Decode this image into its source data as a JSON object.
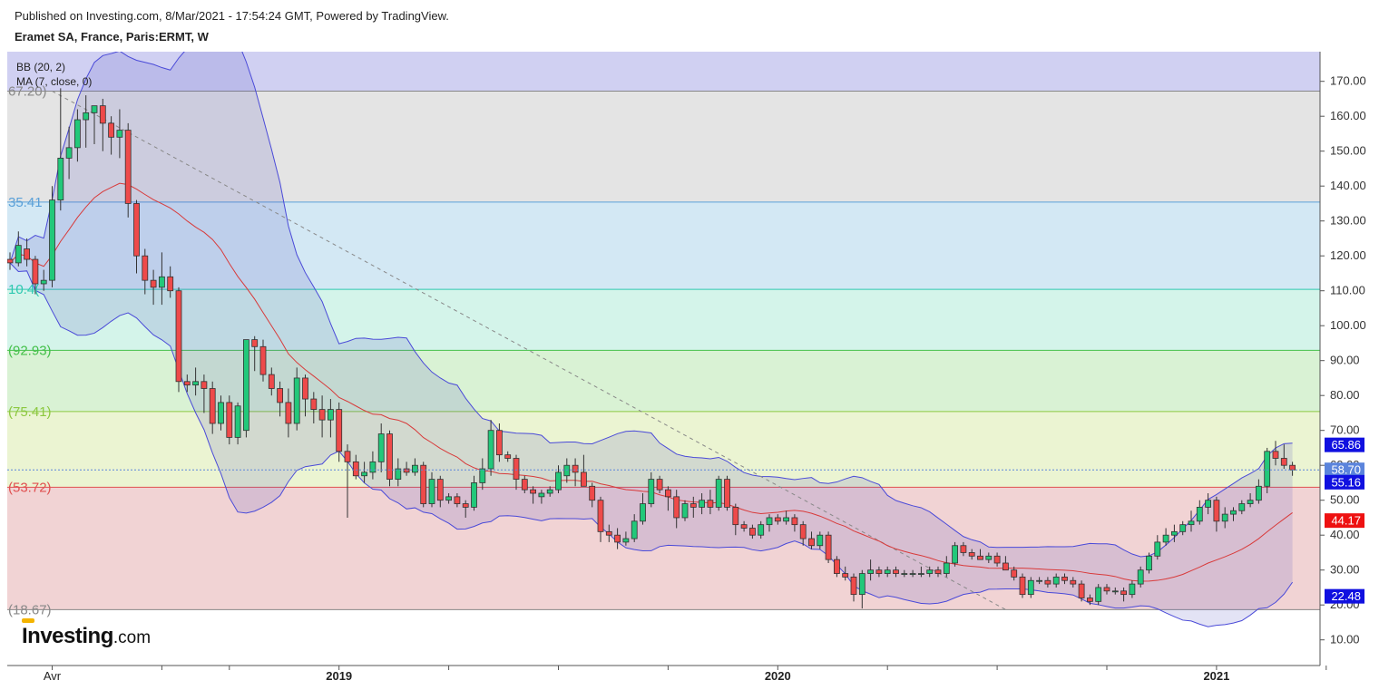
{
  "header": {
    "published": "Published on Investing.com, 8/Mar/2021 - 17:54:24 GMT, Powered by TradingView.",
    "symbol": "Eramet SA, France, Paris:ERMT, W"
  },
  "logo": {
    "main": "Investing",
    "suffix": ".com"
  },
  "indicators": [
    "BB (20, 2)",
    "MA (7, close, 0)"
  ],
  "chart_data": {
    "type": "candlestick",
    "timeframe": "W",
    "ylim": [
      0,
      180
    ],
    "y_ticks": [
      10,
      20,
      30,
      40,
      50,
      60,
      70,
      80,
      90,
      100,
      110,
      120,
      130,
      140,
      150,
      160,
      170
    ],
    "x_tick_labels": [
      {
        "label": "Avr",
        "t": 5
      },
      {
        "label": "2019",
        "t": 39
      },
      {
        "label": "2020",
        "t": 91
      },
      {
        "label": "2021",
        "t": 143
      }
    ],
    "x_minor_ticks": [
      18,
      26,
      52,
      65,
      78,
      104,
      117,
      130,
      156
    ],
    "fib_levels": [
      {
        "label": "67.20)",
        "value": 167.2,
        "color": "#888888",
        "fill": "#d0d0f2"
      },
      {
        "label": "35.41",
        "value": 135.41,
        "color": "#5aa0d8",
        "fill": "#e4e4e4"
      },
      {
        "label": "10.4(",
        "value": 110.4,
        "color": "#2ec8b0",
        "fill": "#d3e8f4"
      },
      {
        "label": "(92.93)",
        "value": 92.93,
        "color": "#44c04a",
        "fill": "#d4f4ea"
      },
      {
        "label": "(75.41)",
        "value": 75.41,
        "color": "#8cc840",
        "fill": "#d9f2d4"
      },
      {
        "label": "(53.72)",
        "value": 53.72,
        "color": "#e05050",
        "fill": "#ebf4d2"
      },
      {
        "label": "(18.67)",
        "value": 18.67,
        "color": "#888888",
        "fill": "#f1d3d4"
      }
    ],
    "price_labels": [
      {
        "value": 65.86,
        "text": "65.86",
        "bg": "#1010e0"
      },
      {
        "value": 58.7,
        "text": "58.70",
        "bg": "#5b84dc"
      },
      {
        "value": 55.16,
        "text": "55.16",
        "bg": "#1010e0"
      },
      {
        "value": 44.17,
        "text": "44.17",
        "bg": "#ee1111"
      },
      {
        "value": 22.48,
        "text": "22.48",
        "bg": "#1010e0"
      }
    ],
    "last_close": 58.7,
    "trendline": {
      "from": [
        5,
        167.2
      ],
      "to": [
        118,
        18.67
      ]
    },
    "candles": [
      [
        0,
        119,
        121,
        116,
        118
      ],
      [
        1,
        118,
        127,
        117,
        123
      ],
      [
        2,
        122,
        125,
        117,
        119
      ],
      [
        3,
        119,
        120,
        109,
        112
      ],
      [
        4,
        112,
        116,
        110,
        113
      ],
      [
        5,
        113,
        140,
        111,
        136
      ],
      [
        6,
        136,
        168,
        133,
        148
      ],
      [
        7,
        148,
        157,
        142,
        151
      ],
      [
        8,
        151,
        162,
        147,
        159
      ],
      [
        9,
        159,
        166,
        151,
        161
      ],
      [
        10,
        161,
        163,
        152,
        163
      ],
      [
        11,
        163,
        165,
        150,
        158
      ],
      [
        12,
        158,
        160,
        149,
        154
      ],
      [
        13,
        154,
        162,
        148,
        156
      ],
      [
        14,
        156,
        158,
        131,
        135
      ],
      [
        15,
        135,
        136,
        115,
        120
      ],
      [
        16,
        120,
        122,
        109,
        113
      ],
      [
        17,
        113,
        116,
        106,
        111
      ],
      [
        18,
        111,
        121,
        106,
        114
      ],
      [
        19,
        114,
        117,
        108,
        110
      ],
      [
        20,
        110,
        111,
        81,
        84
      ],
      [
        21,
        84,
        86,
        81,
        83
      ],
      [
        22,
        83,
        88,
        80,
        84
      ],
      [
        23,
        84,
        86,
        75,
        82
      ],
      [
        24,
        82,
        84,
        69,
        72
      ],
      [
        25,
        72,
        80,
        70,
        78
      ],
      [
        26,
        78,
        80,
        66,
        68
      ],
      [
        27,
        68,
        78,
        66,
        77
      ],
      [
        28,
        70,
        96,
        68,
        96
      ],
      [
        29,
        96,
        97,
        87,
        94
      ],
      [
        30,
        94,
        96,
        84,
        86
      ],
      [
        31,
        86,
        88,
        80,
        82
      ],
      [
        32,
        82,
        84,
        74,
        78
      ],
      [
        33,
        78,
        82,
        68,
        72
      ],
      [
        34,
        72,
        88,
        70,
        85
      ],
      [
        35,
        85,
        86,
        74,
        79
      ],
      [
        36,
        79,
        81,
        72,
        76
      ],
      [
        37,
        76,
        80,
        68,
        73
      ],
      [
        38,
        73,
        79,
        68,
        76
      ],
      [
        39,
        76,
        78,
        61,
        64
      ],
      [
        40,
        64,
        66,
        45,
        61
      ],
      [
        41,
        61,
        63,
        56,
        57
      ],
      [
        42,
        57,
        61,
        55,
        58
      ],
      [
        43,
        58,
        64,
        56,
        61
      ],
      [
        44,
        61,
        72,
        58,
        69
      ],
      [
        45,
        69,
        70,
        54,
        56
      ],
      [
        46,
        56,
        62,
        54,
        59
      ],
      [
        47,
        59,
        61,
        57,
        58
      ],
      [
        48,
        58,
        62,
        57,
        60
      ],
      [
        49,
        60,
        61,
        48,
        49
      ],
      [
        50,
        49,
        58,
        48,
        56
      ],
      [
        51,
        56,
        57,
        48,
        50
      ],
      [
        52,
        50,
        52,
        49,
        51
      ],
      [
        53,
        51,
        52,
        48,
        49
      ],
      [
        54,
        49,
        50,
        45,
        48
      ],
      [
        55,
        48,
        57,
        47,
        55
      ],
      [
        56,
        55,
        62,
        53,
        59
      ],
      [
        57,
        59,
        73,
        57,
        70
      ],
      [
        58,
        70,
        72,
        61,
        63
      ],
      [
        59,
        63,
        64,
        61,
        62
      ],
      [
        60,
        62,
        63,
        53,
        56
      ],
      [
        61,
        56,
        57,
        52,
        53
      ],
      [
        62,
        53,
        54,
        49,
        52
      ],
      [
        63,
        51,
        53,
        49,
        52
      ],
      [
        64,
        52,
        54,
        51,
        53
      ],
      [
        65,
        53,
        60,
        52,
        58
      ],
      [
        66,
        57,
        62,
        55,
        60
      ],
      [
        67,
        60,
        62,
        54,
        58
      ],
      [
        68,
        58,
        63,
        54,
        54
      ],
      [
        69,
        54,
        55,
        48,
        50
      ],
      [
        70,
        50,
        51,
        38,
        41
      ],
      [
        71,
        41,
        43,
        38,
        40
      ],
      [
        72,
        40,
        42,
        36,
        38
      ],
      [
        73,
        38,
        41,
        37,
        39
      ],
      [
        74,
        39,
        46,
        38,
        44
      ],
      [
        75,
        44,
        52,
        43,
        49
      ],
      [
        76,
        49,
        58,
        48,
        56
      ],
      [
        77,
        56,
        57,
        52,
        53
      ],
      [
        78,
        53,
        54,
        47,
        51
      ],
      [
        79,
        51,
        53,
        42,
        45
      ],
      [
        80,
        45,
        50,
        44,
        49
      ],
      [
        81,
        49,
        51,
        45,
        48
      ],
      [
        82,
        48,
        52,
        46,
        50
      ],
      [
        83,
        50,
        53,
        46,
        48
      ],
      [
        84,
        48,
        57,
        47,
        56
      ],
      [
        85,
        56,
        57,
        47,
        48
      ],
      [
        86,
        48,
        49,
        40,
        43
      ],
      [
        87,
        43,
        44,
        41,
        42
      ],
      [
        88,
        42,
        43,
        39,
        40
      ],
      [
        89,
        40,
        44,
        39,
        43
      ],
      [
        90,
        43,
        46,
        41,
        45
      ],
      [
        91,
        45,
        46,
        43,
        44
      ],
      [
        92,
        44,
        47,
        43,
        45
      ],
      [
        93,
        45,
        46,
        41,
        43
      ],
      [
        94,
        43,
        44,
        37,
        39
      ],
      [
        95,
        39,
        41,
        36,
        37
      ],
      [
        96,
        37,
        41,
        36,
        40
      ],
      [
        97,
        40,
        41,
        32,
        33
      ],
      [
        98,
        33,
        34,
        28,
        29
      ],
      [
        99,
        29,
        31,
        27,
        28
      ],
      [
        100,
        28,
        29,
        21,
        23
      ],
      [
        101,
        23,
        30,
        19,
        29
      ],
      [
        102,
        29,
        33,
        27,
        30
      ],
      [
        103,
        30,
        31,
        28,
        29
      ],
      [
        104,
        29,
        31,
        28,
        30
      ],
      [
        105,
        30,
        31,
        28,
        29
      ],
      [
        106,
        29,
        30,
        28,
        29
      ],
      [
        107,
        29,
        30,
        28,
        29
      ],
      [
        108,
        29,
        31,
        28,
        29
      ],
      [
        109,
        29,
        31,
        28,
        30
      ],
      [
        110,
        30,
        31,
        28,
        29
      ],
      [
        111,
        29,
        34,
        28,
        32
      ],
      [
        112,
        32,
        38,
        31,
        37
      ],
      [
        113,
        37,
        38,
        34,
        35
      ],
      [
        114,
        35,
        36,
        33,
        34
      ],
      [
        115,
        34,
        36,
        33,
        33
      ],
      [
        116,
        33,
        35,
        32,
        34
      ],
      [
        117,
        34,
        35,
        31,
        32
      ],
      [
        118,
        32,
        34,
        30,
        30
      ],
      [
        119,
        30,
        31,
        27,
        28
      ],
      [
        120,
        28,
        29,
        22,
        23
      ],
      [
        121,
        23,
        28,
        22,
        27
      ],
      [
        122,
        27,
        28,
        26,
        27
      ],
      [
        123,
        27,
        28,
        25,
        26
      ],
      [
        124,
        26,
        29,
        25,
        28
      ],
      [
        125,
        28,
        29,
        26,
        27
      ],
      [
        126,
        27,
        28,
        25,
        26
      ],
      [
        127,
        26,
        27,
        21,
        22
      ],
      [
        128,
        22,
        23,
        20,
        21
      ],
      [
        129,
        21,
        26,
        20,
        25
      ],
      [
        130,
        25,
        26,
        23,
        24
      ],
      [
        131,
        24,
        25,
        23,
        24
      ],
      [
        132,
        24,
        25,
        21,
        23
      ],
      [
        133,
        23,
        27,
        22,
        26
      ],
      [
        134,
        26,
        31,
        25,
        30
      ],
      [
        135,
        30,
        35,
        29,
        34
      ],
      [
        136,
        34,
        40,
        33,
        38
      ],
      [
        137,
        38,
        42,
        37,
        40
      ],
      [
        138,
        40,
        43,
        38,
        41
      ],
      [
        139,
        41,
        44,
        40,
        43
      ],
      [
        140,
        43,
        47,
        41,
        44
      ],
      [
        141,
        44,
        50,
        43,
        48
      ],
      [
        142,
        48,
        52,
        46,
        50
      ],
      [
        143,
        50,
        51,
        41,
        44
      ],
      [
        144,
        44,
        48,
        42,
        46
      ],
      [
        145,
        46,
        48,
        44,
        47
      ],
      [
        146,
        47,
        50,
        46,
        49
      ],
      [
        147,
        49,
        52,
        48,
        50
      ],
      [
        148,
        50,
        56,
        49,
        54
      ],
      [
        149,
        54,
        65,
        52,
        64
      ],
      [
        150,
        64,
        67,
        60,
        62
      ],
      [
        151,
        62,
        66,
        59,
        60
      ],
      [
        152,
        60,
        61,
        57,
        58.7
      ]
    ]
  }
}
